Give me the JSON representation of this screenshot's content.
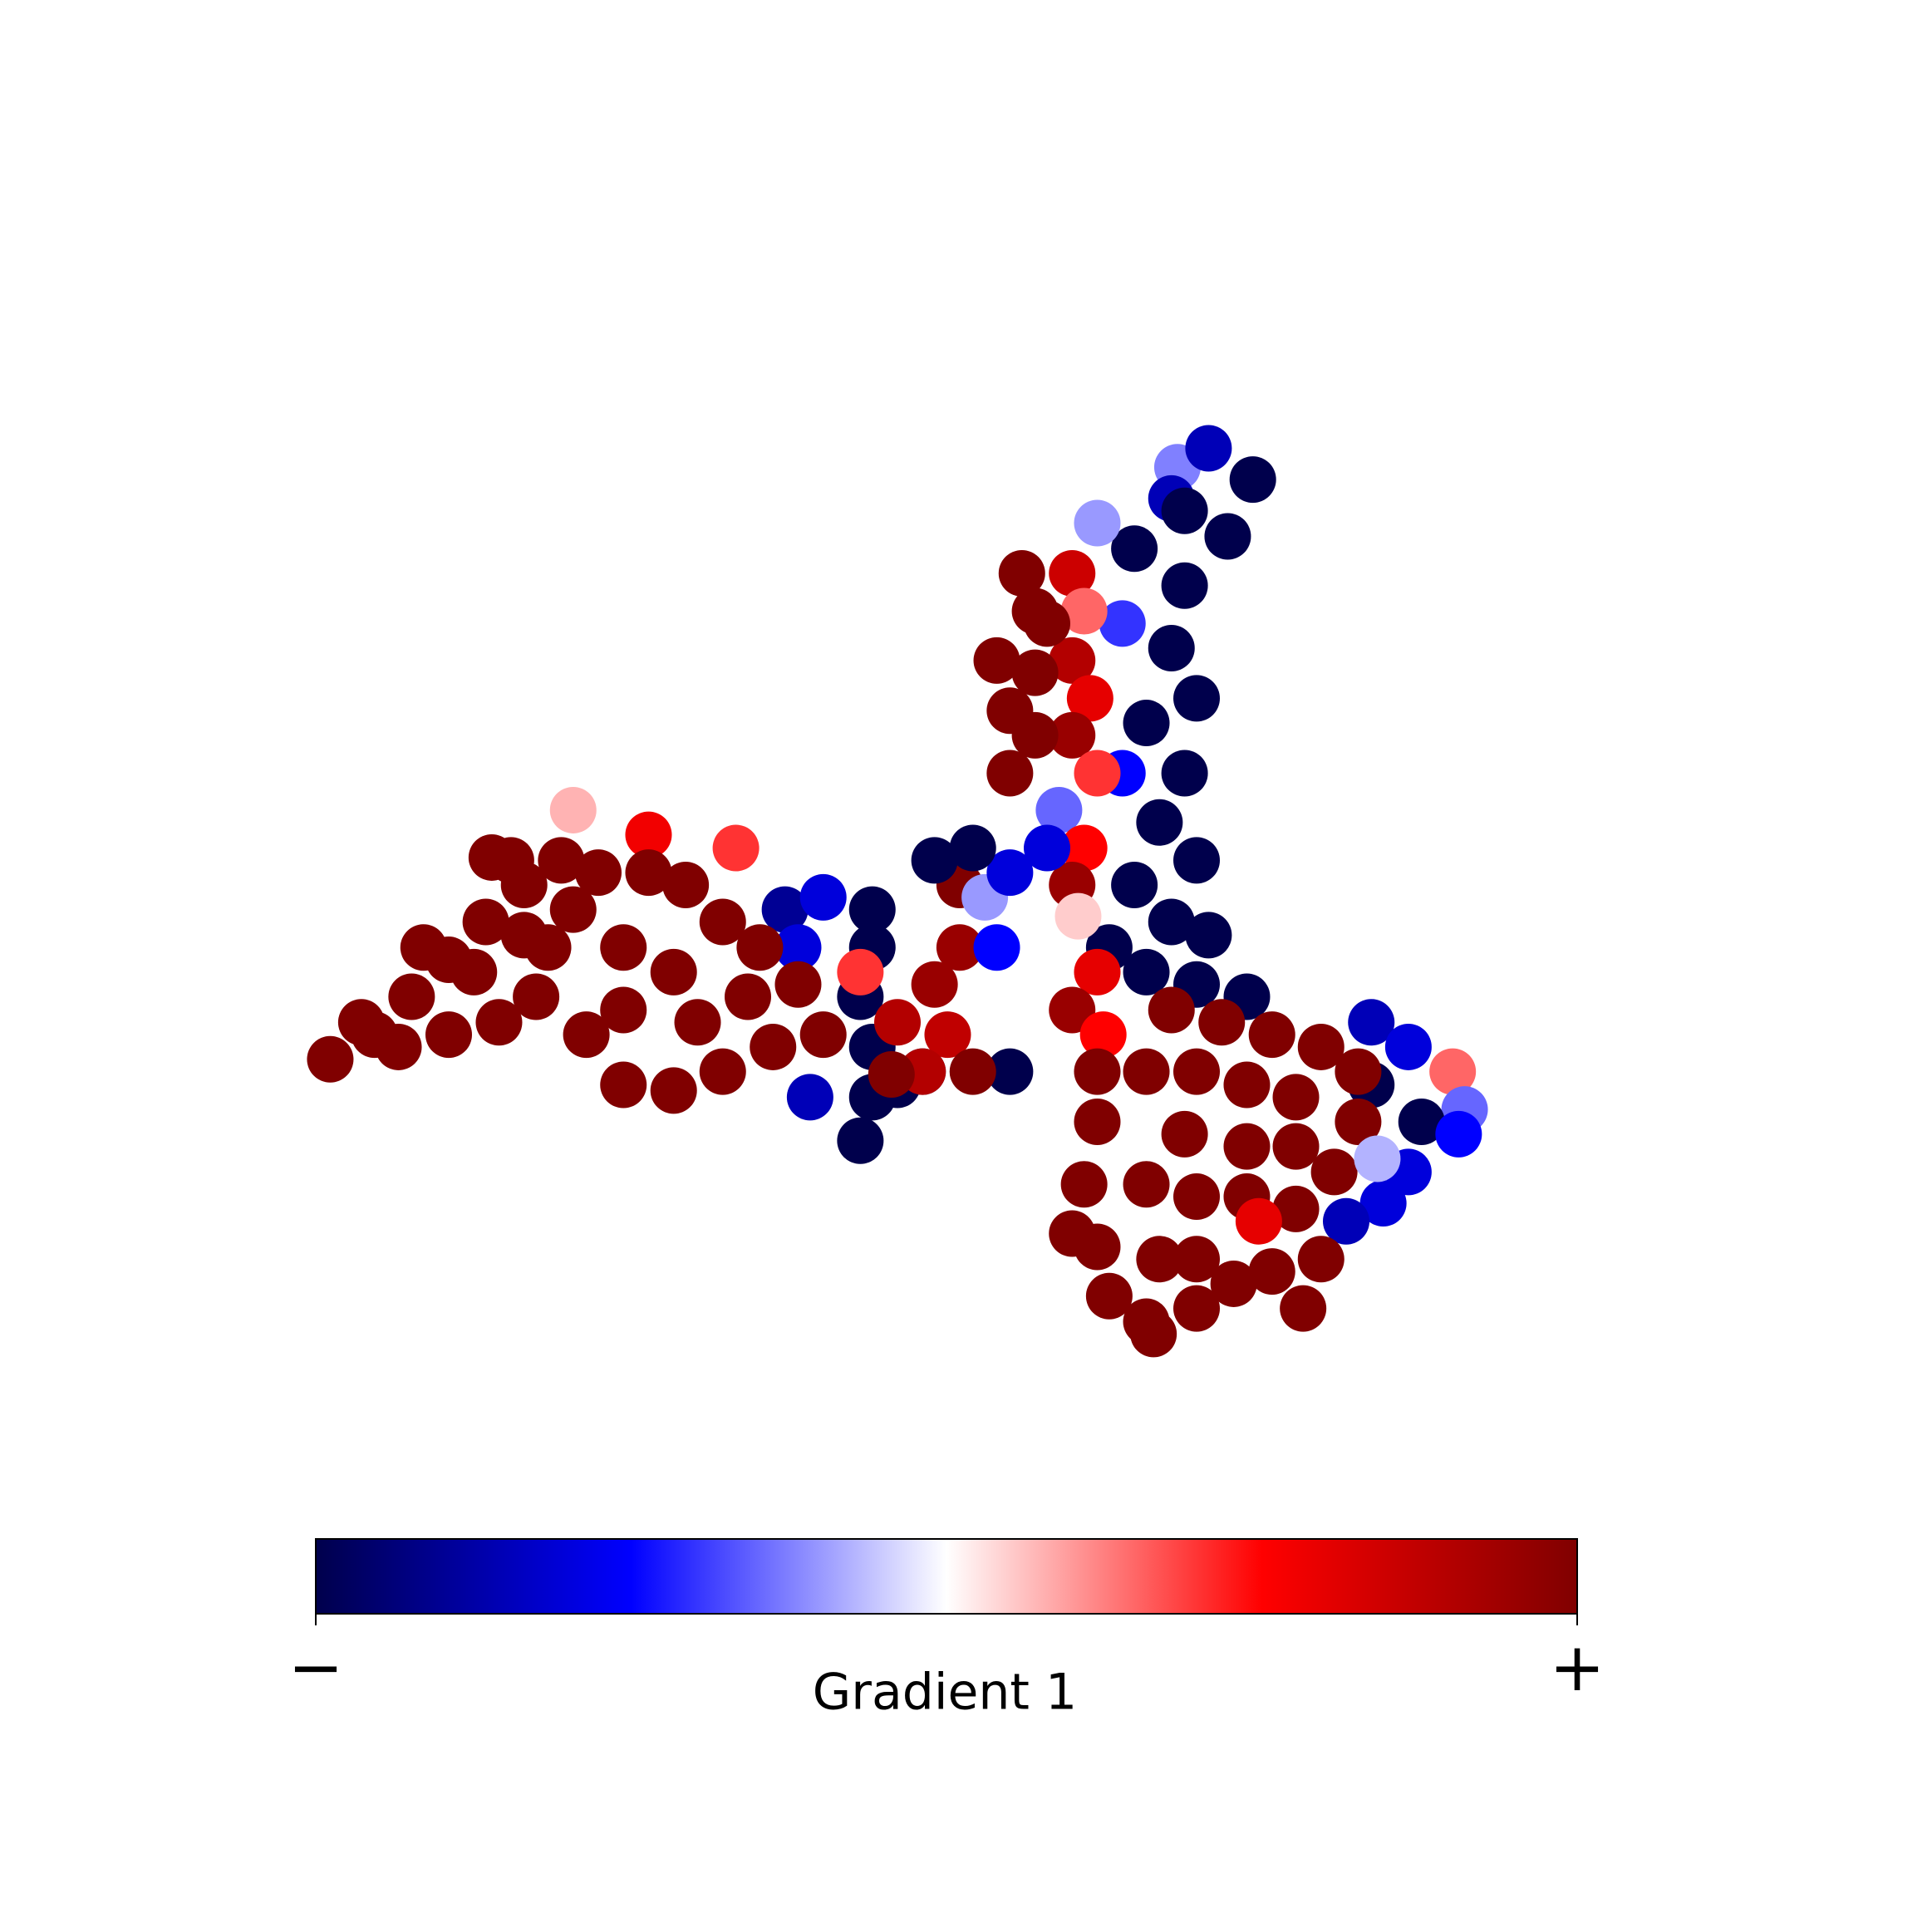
{
  "chart_data": {
    "type": "scatter",
    "x": [
      73.4,
      72.9,
      76.0,
      79.7,
      74.0,
      77.6,
      69.8,
      74.0,
      68.8,
      72.9,
      75.0,
      70.8,
      74.0,
      68.8,
      71.9,
      75.0,
      69.8,
      72.9,
      76.0,
      70.8,
      75.0,
      67.7,
      66.7,
      40.6,
      43.8,
      47.9,
      47.9,
      46.9,
      47.9,
      47.9,
      46.9,
      50.0,
      42.7,
      52.1,
      41.7,
      89.6,
      92.7,
      96.4,
      97.4,
      93.8,
      96.9,
      92.7,
      90.6,
      87.5,
      79.2,
      89.6,
      46.9,
      50.0,
      53.1,
      54.2,
      55.2,
      55.2,
      58.3,
      57.3,
      59.4,
      56.3,
      53.1,
      59.4,
      56.3,
      52.1,
      49.5,
      64.6,
      65.6,
      64.6,
      66.1,
      64.6,
      66.7,
      63.5,
      65.6,
      64.6,
      65.1,
      66.7,
      64.6,
      67.2,
      62.5,
      60.4,
      61.5,
      58.3,
      61.5,
      59.4,
      61.5,
      59.4,
      62.5,
      22.9,
      29.2,
      36.5,
      16.1,
      2.6,
      6.3,
      9.4,
      12.5,
      15.6,
      18.8,
      21.9,
      25.0,
      29.2,
      32.3,
      35.4,
      38.5,
      41.7,
      43.8,
      39.6,
      35.4,
      31.3,
      27.1,
      24.0,
      19.8,
      16.7,
      12.5,
      8.3,
      5.2,
      10.4,
      14.6,
      20.8,
      27.1,
      31.3,
      33.3,
      37.5,
      27.1,
      22.9,
      18.8,
      17.7,
      72.9,
      77.1,
      81.3,
      85.4,
      88.5,
      88.5,
      86.5,
      83.3,
      85.4,
      81.3,
      78.1,
      75.0,
      70.8,
      67.7,
      66.7,
      64.6,
      65.6,
      66.7,
      66.7,
      70.8,
      75.0,
      79.2,
      83.3,
      74.0,
      79.2,
      83.3,
      70.8,
      75.0,
      79.2,
      71.9,
      75.0,
      83.9,
      71.4,
      80.2,
      90.1
    ],
    "values": [
      94.1,
      90.8,
      96.1,
      92.8,
      89.5,
      86.8,
      85.5,
      81.6,
      77.6,
      75.0,
      69.7,
      67.1,
      61.8,
      61.8,
      56.6,
      52.6,
      50.0,
      46.1,
      44.7,
      40.8,
      39.5,
      43.4,
      88.2,
      47.4,
      48.7,
      47.4,
      43.4,
      38.2,
      32.9,
      27.6,
      23.0,
      28.9,
      27.6,
      30.3,
      43.4,
      35.5,
      32.9,
      30.3,
      26.3,
      25.0,
      23.7,
      19.7,
      16.4,
      14.5,
      38.2,
      28.9,
      40.8,
      35.5,
      39.5,
      34.2,
      50.0,
      43.4,
      43.4,
      48.7,
      51.3,
      53.9,
      52.6,
      30.3,
      30.3,
      30.3,
      30.0,
      82.9,
      78.9,
      73.7,
      69.7,
      65.8,
      61.8,
      57.9,
      53.9,
      50.0,
      46.7,
      40.8,
      36.8,
      34.2,
      53.9,
      82.9,
      78.9,
      73.7,
      72.4,
      68.4,
      65.8,
      61.8,
      77.6,
      57.9,
      55.3,
      53.9,
      52.9,
      31.6,
      34.2,
      38.2,
      42.1,
      46.1,
      50.0,
      52.6,
      51.3,
      51.3,
      50.0,
      46.1,
      43.4,
      39.5,
      34.2,
      32.9,
      30.3,
      28.3,
      28.9,
      34.2,
      38.2,
      35.5,
      34.2,
      32.9,
      35.5,
      43.4,
      40.8,
      43.4,
      43.4,
      40.8,
      35.5,
      38.2,
      36.8,
      47.4,
      44.7,
      52.6,
      36.8,
      35.5,
      34.2,
      32.9,
      30.3,
      25.0,
      19.7,
      15.8,
      10.5,
      9.2,
      7.9,
      5.3,
      3.9,
      6.6,
      11.8,
      13.2,
      18.4,
      25.0,
      30.3,
      30.3,
      30.3,
      28.9,
      27.6,
      23.7,
      22.4,
      22.4,
      18.4,
      17.1,
      17.1,
      10.5,
      10.5,
      5.3,
      2.6,
      14.5,
      21.1
    ],
    "color_values": [
      -0.25,
      -0.7,
      -0.7,
      -1,
      -1,
      -1,
      -1,
      -1,
      -0.4,
      -1,
      -1,
      -1,
      -1,
      -0.5,
      -1,
      -1,
      -1,
      -1,
      -1,
      -1,
      -1,
      -1,
      -0.2,
      -0.8,
      -0.6,
      -1,
      -1,
      -1,
      -1,
      -1,
      -1,
      -1,
      -0.7,
      -1,
      -0.6,
      -0.7,
      -0.6,
      0.3,
      -0.3,
      -1,
      -0.5,
      -0.6,
      -0.6,
      -0.7,
      -1,
      -1,
      0.4,
      0.8,
      0.9,
      0.75,
      1,
      0.9,
      -0.5,
      -0.2,
      -0.6,
      -1,
      -1,
      -1,
      1,
      0.8,
      1,
      0.7,
      0.3,
      0.8,
      0.6,
      0.9,
      0.4,
      -0.3,
      0.5,
      0.9,
      0.1,
      0.6,
      0.9,
      0.5,
      -0.6,
      1,
      1,
      1,
      1,
      1,
      1,
      1,
      1,
      0.15,
      0.55,
      0.4,
      1,
      1,
      1,
      1,
      1,
      1,
      1,
      1,
      1,
      1,
      1,
      1,
      1,
      1,
      1,
      1,
      1,
      1,
      1,
      1,
      1,
      1,
      1,
      1,
      1,
      1,
      1,
      1,
      1,
      1,
      1,
      1,
      1,
      1,
      1,
      1,
      1,
      1,
      1,
      1,
      1,
      1,
      1,
      1,
      1,
      1,
      1,
      1,
      1,
      1,
      1,
      1,
      1,
      1,
      1,
      1,
      1,
      1,
      1,
      1,
      1,
      1,
      1,
      1,
      1,
      1,
      1,
      1,
      1,
      0.6,
      -0.15
    ],
    "colormap": [
      "#00004c",
      "#0000ff",
      "#ffffff",
      "#ff0000",
      "#800000"
    ],
    "xlim": [
      0,
      100
    ],
    "ylim": [
      0,
      100
    ],
    "colorbar": {
      "label": "Gradient 1",
      "clim": [
        -1,
        1
      ],
      "ticks": [
        {
          "value": -1,
          "label": "−"
        },
        {
          "value": 1,
          "label": "+"
        }
      ]
    }
  }
}
